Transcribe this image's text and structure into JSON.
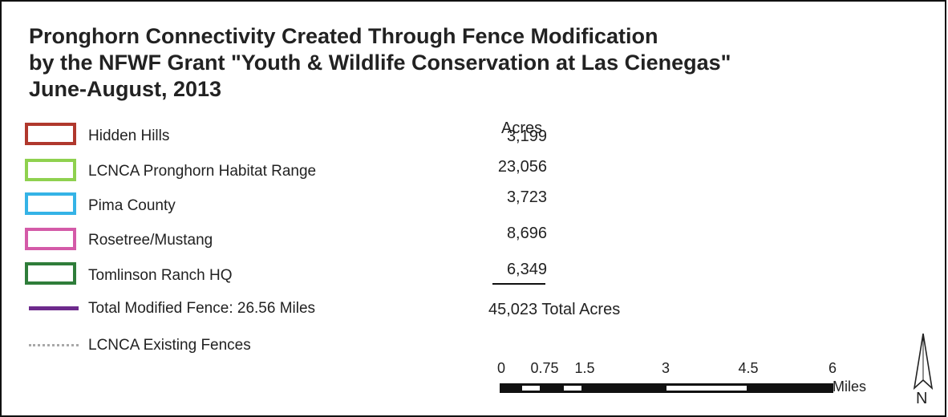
{
  "title": {
    "line1": "Pronghorn Connectivity Created Through Fence Modification",
    "line2": "by the NFWF Grant \"Youth & Wildlife Conservation at Las Cienegas\"",
    "line3": "June-August, 2013"
  },
  "acres_header": "Acres",
  "legend": {
    "areas": [
      {
        "label": "Hidden Hills",
        "acres": "3,199",
        "color": "#b0382d"
      },
      {
        "label": "LCNCA Pronghorn Habitat Range",
        "acres": "23,056",
        "color": "#8fd14f"
      },
      {
        "label": "Pima County",
        "acres": "3,723",
        "color": "#35b3e6"
      },
      {
        "label": "Rosetree/Mustang",
        "acres": "8,696",
        "color": "#d45aa8"
      },
      {
        "label": "Tomlinson Ranch HQ",
        "acres": "6,349",
        "color": "#2f7d3a"
      }
    ],
    "modified_fence": {
      "label": "Total Modified Fence: 26.56 Miles",
      "color": "#6d2a8c"
    },
    "existing_fences": {
      "label": "LCNCA Existing Fences",
      "color": "#a9a9a9"
    }
  },
  "total_acres": "45,023 Total Acres",
  "scale_bar": {
    "ticks": [
      "0",
      "0.75",
      "1.5",
      "3",
      "4.5",
      "6"
    ],
    "unit": "Miles"
  },
  "north_arrow": {
    "label": "N",
    "icon": "north-arrow-icon"
  }
}
